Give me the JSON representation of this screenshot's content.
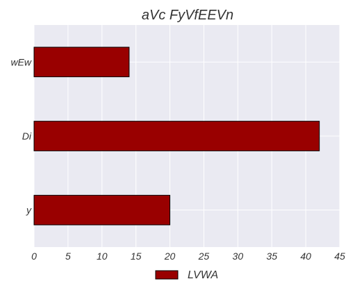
{
  "chart_data": {
    "type": "bar",
    "orientation": "horizontal",
    "title": "aVc FyVfEEVn",
    "categories": [
      "y",
      "Di",
      "wEw"
    ],
    "series": [
      {
        "name": "LVWA",
        "values": [
          20,
          42,
          14
        ],
        "color": "#990000"
      }
    ],
    "xlabel": "",
    "ylabel": "",
    "xlim": [
      0,
      45
    ],
    "xticks": [
      0,
      5,
      10,
      15,
      20,
      25,
      30,
      35,
      40,
      45
    ],
    "grid": true,
    "legend": "bottom-center"
  },
  "colors": {
    "plot_background": "#eaeaf2",
    "grid": "#ffffff",
    "bar_edge": "#000000",
    "text": "#333333"
  }
}
